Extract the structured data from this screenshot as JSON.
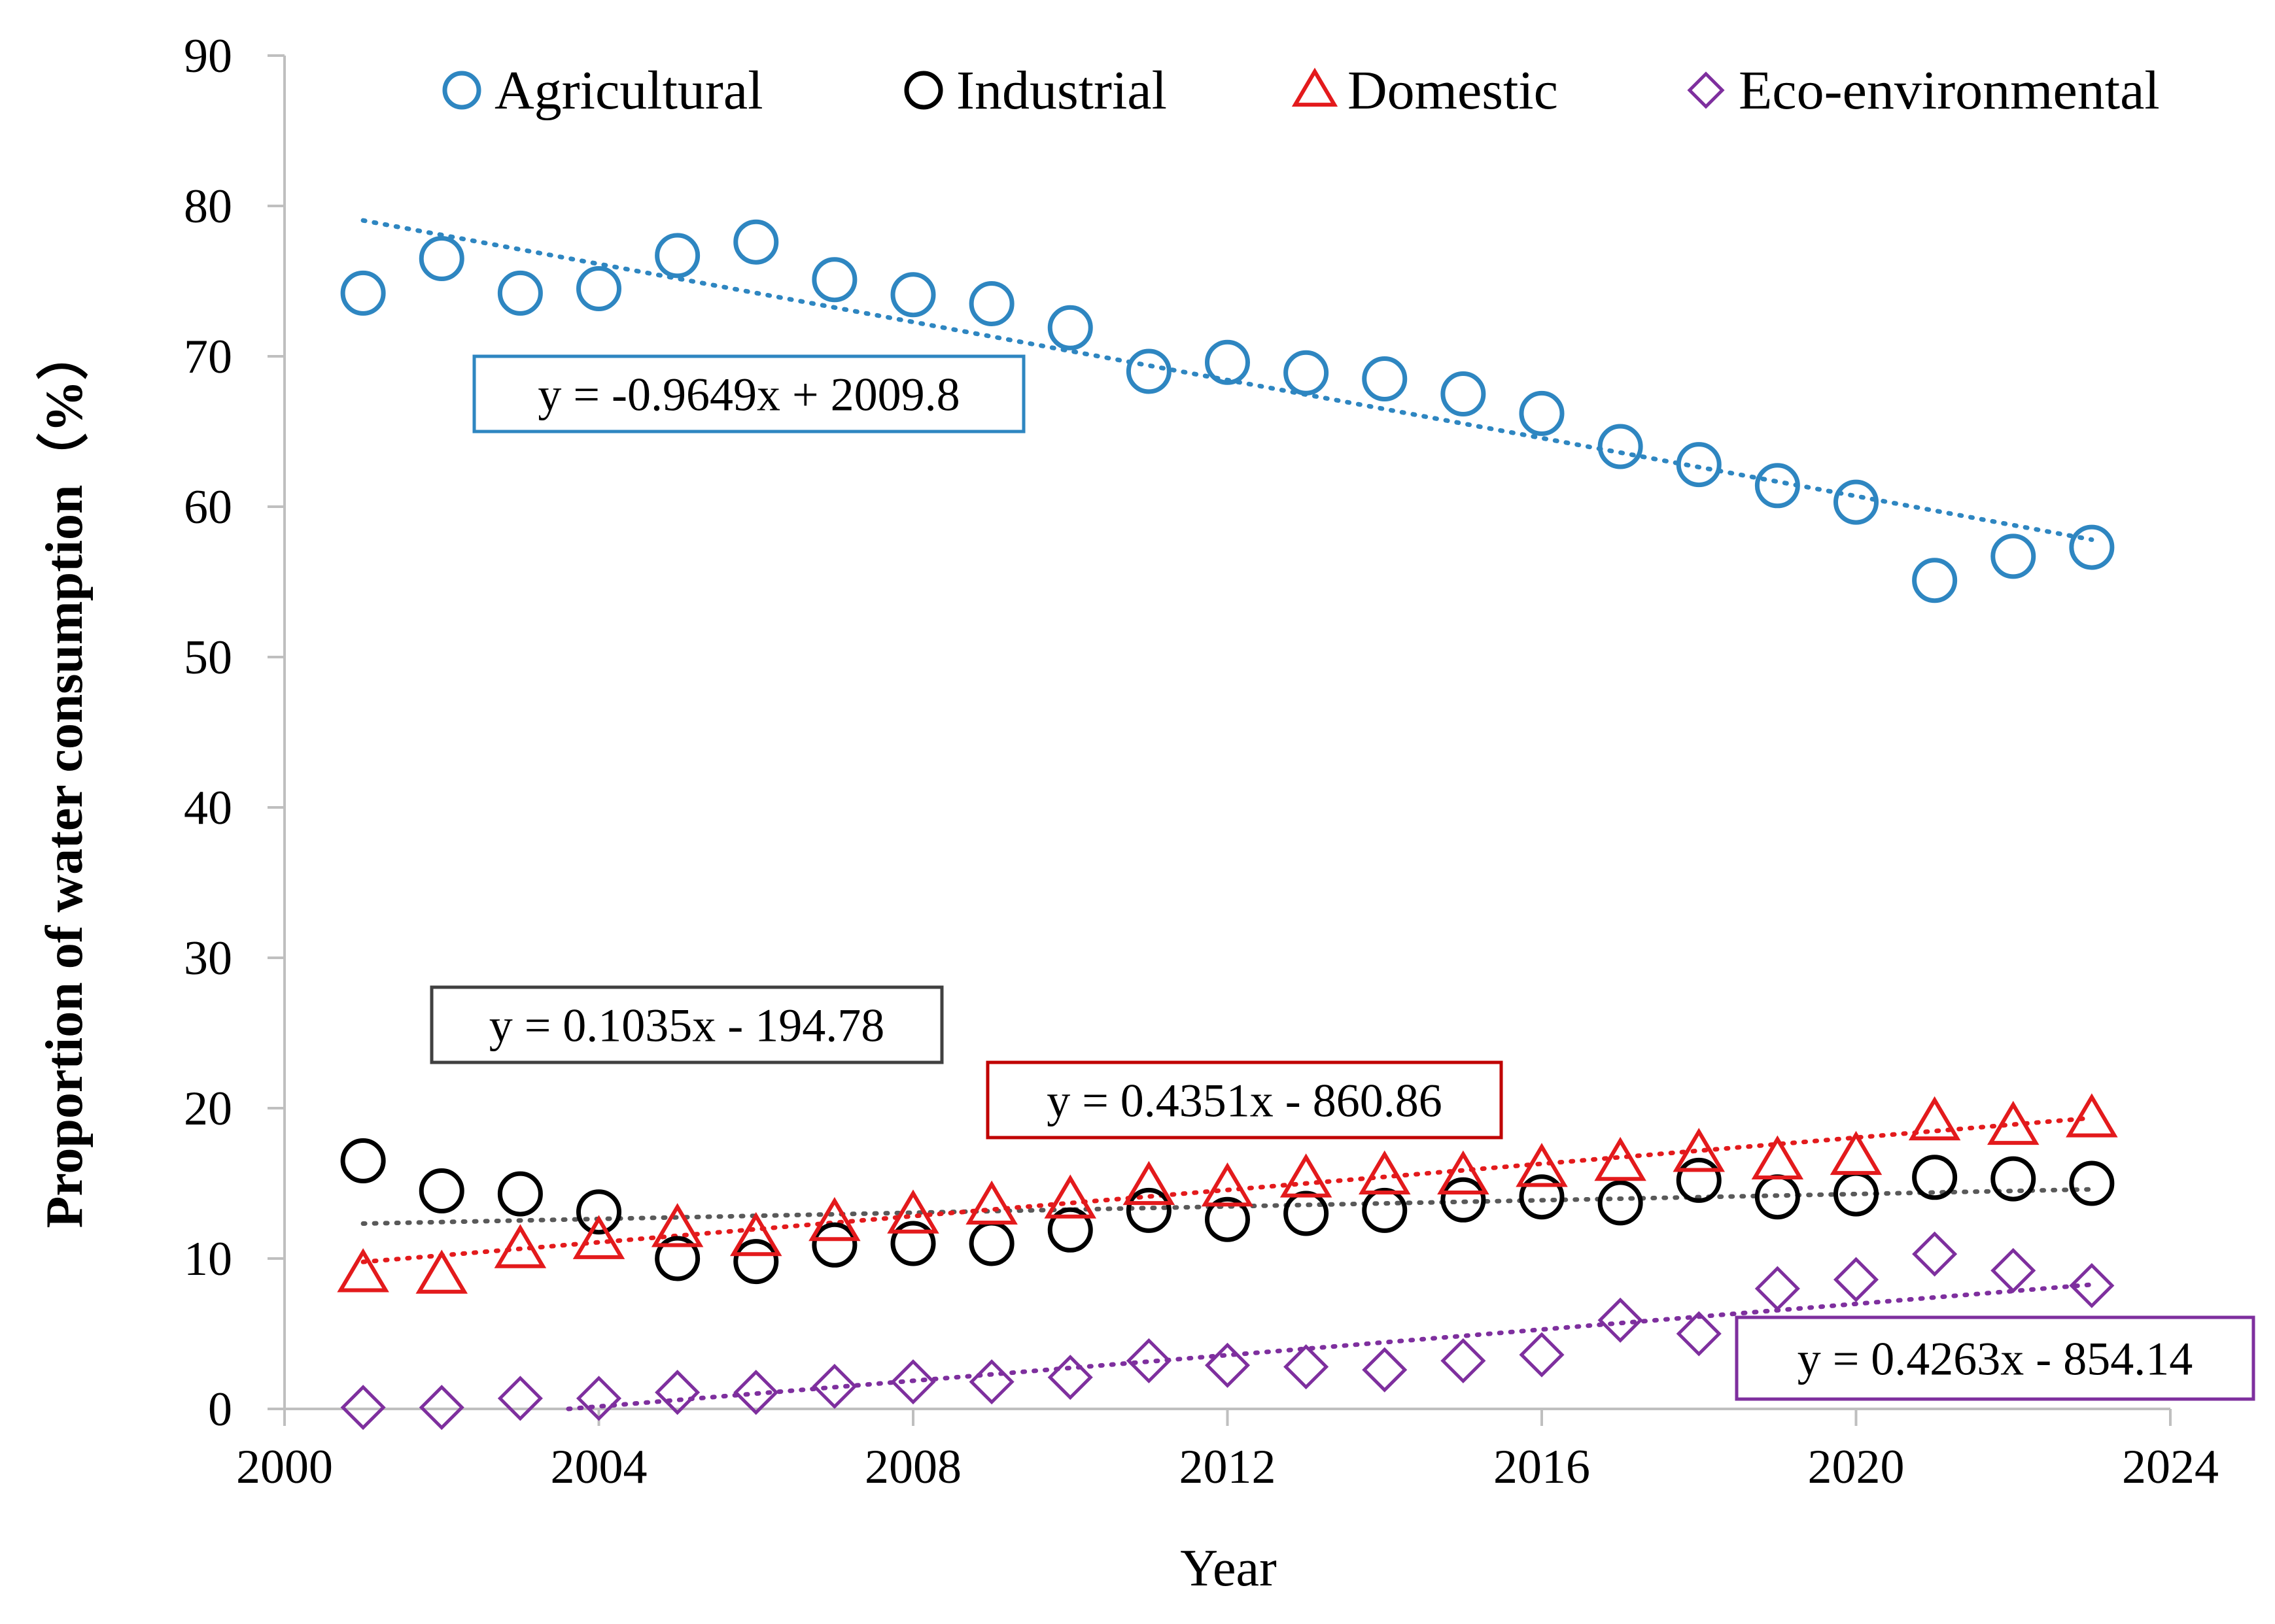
{
  "chart_data": {
    "type": "scatter",
    "xlabel": "Year",
    "ylabel": "Proportion of water consumption（%）",
    "xlim": [
      2000,
      2024
    ],
    "ylim": [
      0,
      90
    ],
    "x_ticks": [
      2000,
      2004,
      2008,
      2012,
      2016,
      2020,
      2024
    ],
    "y_ticks": [
      0,
      10,
      20,
      30,
      40,
      50,
      60,
      70,
      80,
      90
    ],
    "grid": false,
    "legend_position": "top",
    "x": [
      2001,
      2002,
      2003,
      2004,
      2005,
      2006,
      2007,
      2008,
      2009,
      2010,
      2011,
      2012,
      2013,
      2014,
      2015,
      2016,
      2017,
      2018,
      2019,
      2020,
      2021,
      2022,
      2023
    ],
    "series": [
      {
        "name": "Agricultural",
        "marker": "circle",
        "color": "#2E86C1",
        "values": [
          74.2,
          76.5,
          74.2,
          74.5,
          76.7,
          77.6,
          75.1,
          74.1,
          73.5,
          71.9,
          69.0,
          69.6,
          68.9,
          68.5,
          67.5,
          66.2,
          64.0,
          62.8,
          61.4,
          60.3,
          55.1,
          56.7,
          57.3
        ],
        "trendline": {
          "slope": -0.9649,
          "intercept": 2009.8,
          "equation": "y = -0.9649x + 2009.8"
        }
      },
      {
        "name": "Industrial",
        "marker": "circle",
        "color": "#000000",
        "values": [
          16.5,
          14.5,
          14.3,
          13.1,
          10.0,
          9.8,
          10.9,
          11.0,
          11.0,
          11.9,
          13.2,
          12.6,
          13.0,
          13.2,
          13.9,
          14.1,
          13.7,
          15.2,
          14.1,
          14.3,
          15.4,
          15.3,
          15.0
        ],
        "trendline": {
          "slope": 0.1035,
          "intercept": -194.78,
          "equation": "y = 0.1035x - 194.78"
        }
      },
      {
        "name": "Domestic",
        "marker": "triangle",
        "color": "#E31A1C",
        "values": [
          9.0,
          8.9,
          10.6,
          11.2,
          12.0,
          11.4,
          12.4,
          12.9,
          13.5,
          13.9,
          14.8,
          14.7,
          15.3,
          15.5,
          15.5,
          16.0,
          16.4,
          17.0,
          16.5,
          16.8,
          19.1,
          18.8,
          19.3
        ],
        "trendline": {
          "slope": 0.4351,
          "intercept": -860.86,
          "equation": "y = 0.4351x - 860.86"
        }
      },
      {
        "name": "Eco-environmental",
        "marker": "diamond",
        "color": "#7E2F9E",
        "values": [
          0.1,
          0.1,
          0.7,
          0.7,
          1.1,
          1.1,
          1.5,
          1.8,
          1.8,
          2.1,
          3.2,
          2.9,
          2.8,
          2.6,
          3.2,
          3.6,
          5.9,
          5.0,
          8.0,
          8.6,
          10.3,
          9.2,
          8.2
        ],
        "trendline": {
          "slope": 0.4263,
          "intercept": -854.14,
          "equation": "y = 0.4263x - 854.14"
        }
      }
    ]
  }
}
